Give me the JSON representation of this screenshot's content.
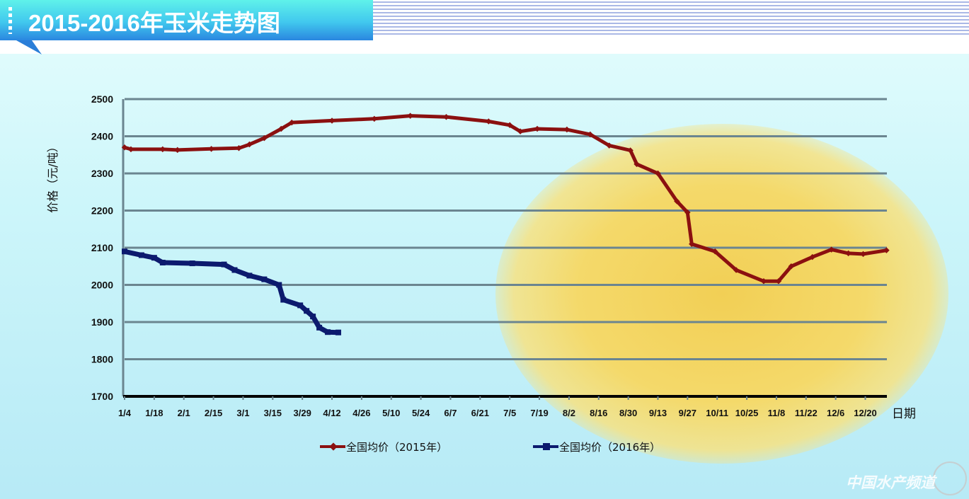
{
  "header": {
    "title": "2015-2016年玉米走势图"
  },
  "watermark": "中国水产频道",
  "chart_data": {
    "type": "line",
    "title": "",
    "xlabel": "日期",
    "ylabel": "价格（元/吨）",
    "ylim": [
      1700,
      2500
    ],
    "yticks": [
      1700,
      1800,
      1900,
      2000,
      2100,
      2200,
      2300,
      2400,
      2500
    ],
    "xtick_labels": [
      "1/4",
      "1/18",
      "2/1",
      "2/15",
      "3/1",
      "3/15",
      "3/29",
      "4/12",
      "4/26",
      "5/10",
      "5/24",
      "6/7",
      "6/21",
      "7/5",
      "7/19",
      "8/2",
      "8/16",
      "8/30",
      "9/13",
      "9/27",
      "10/11",
      "10/25",
      "11/8",
      "11/22",
      "12/6",
      "12/20"
    ],
    "grid": true,
    "legend": "bottom",
    "series": [
      {
        "name": "全国均价（2015年）",
        "color": "#8b1010",
        "marker": "diamond",
        "points": [
          [
            "1/4",
            2370
          ],
          [
            "1/7",
            2365
          ],
          [
            "1/22",
            2365
          ],
          [
            "1/29",
            2363
          ],
          [
            "2/14",
            2366
          ],
          [
            "2/27",
            2368
          ],
          [
            "3/4",
            2378
          ],
          [
            "3/11",
            2395
          ],
          [
            "3/19",
            2420
          ],
          [
            "3/24",
            2437
          ],
          [
            "4/12",
            2442
          ],
          [
            "5/2",
            2447
          ],
          [
            "5/19",
            2455
          ],
          [
            "6/5",
            2452
          ],
          [
            "6/25",
            2440
          ],
          [
            "7/5",
            2430
          ],
          [
            "7/10",
            2413
          ],
          [
            "7/18",
            2420
          ],
          [
            "8/1",
            2418
          ],
          [
            "8/12",
            2405
          ],
          [
            "8/21",
            2375
          ],
          [
            "8/31",
            2362
          ],
          [
            "9/3",
            2325
          ],
          [
            "9/13",
            2300
          ],
          [
            "9/22",
            2225
          ],
          [
            "9/27",
            2195
          ],
          [
            "9/29",
            2110
          ],
          [
            "10/10",
            2090
          ],
          [
            "10/20",
            2040
          ],
          [
            "11/2",
            2010
          ],
          [
            "11/9",
            2010
          ],
          [
            "11/15",
            2050
          ],
          [
            "11/25",
            2075
          ],
          [
            "12/4",
            2095
          ],
          [
            "12/12",
            2085
          ],
          [
            "12/19",
            2083
          ],
          [
            "12/30",
            2093
          ]
        ]
      },
      {
        "name": "全国均价（2016年）",
        "color": "#0c1a6e",
        "marker": "square",
        "points": [
          [
            "1/4",
            2090
          ],
          [
            "1/12",
            2080
          ],
          [
            "1/18",
            2073
          ],
          [
            "1/22",
            2060
          ],
          [
            "2/5",
            2058
          ],
          [
            "2/20",
            2055
          ],
          [
            "2/25",
            2040
          ],
          [
            "3/4",
            2025
          ],
          [
            "3/11",
            2015
          ],
          [
            "3/18",
            2000
          ],
          [
            "3/20",
            1960
          ],
          [
            "3/28",
            1945
          ],
          [
            "3/31",
            1930
          ],
          [
            "4/3",
            1915
          ],
          [
            "4/6",
            1885
          ],
          [
            "4/10",
            1873
          ],
          [
            "4/15",
            1872
          ]
        ]
      }
    ]
  }
}
